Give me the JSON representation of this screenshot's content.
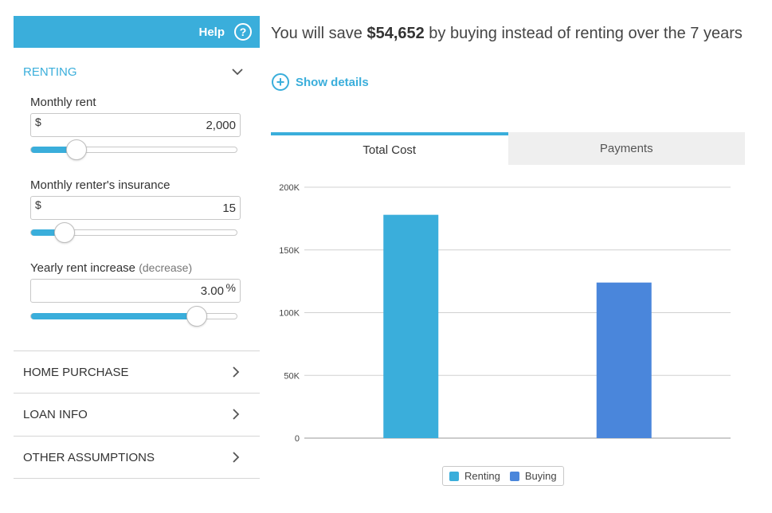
{
  "help": {
    "label": "Help",
    "icon": "question-icon",
    "icon_glyph": "?"
  },
  "renting": {
    "title": "RENTING",
    "fields": [
      {
        "label": "Monthly rent",
        "prefix": "$",
        "value": "2,000",
        "slider_fraction": 0.22
      },
      {
        "label": "Monthly renter's insurance",
        "prefix": "$",
        "value": "15",
        "slider_fraction": 0.16
      },
      {
        "label": "Yearly rent increase",
        "label_note": "(decrease)",
        "suffix": "%",
        "value": "3.00",
        "slider_fraction": 0.8
      }
    ]
  },
  "collapsed_sections": [
    "HOME PURCHASE",
    "LOAN INFO",
    "OTHER ASSUMPTIONS"
  ],
  "headline": {
    "prefix": "You will save ",
    "amount": "$54,652",
    "suffix": " by buying instead of renting over the 7 years"
  },
  "show_details": {
    "label": "Show details",
    "icon": "plus-circle-icon"
  },
  "tabs": [
    {
      "label": "Total Cost",
      "active": true
    },
    {
      "label": "Payments",
      "active": false
    }
  ],
  "colors": {
    "accent": "#3aaedb",
    "renting": "#3aaedb",
    "buying": "#4a86db"
  },
  "chart_data": {
    "type": "bar",
    "categories": [
      "Renting",
      "Buying"
    ],
    "values": [
      178000,
      124000
    ],
    "ylim": [
      0,
      200000
    ],
    "yticks": [
      0,
      50000,
      100000,
      150000,
      200000
    ],
    "ytick_labels": [
      "0",
      "50K",
      "100K",
      "150K",
      "200K"
    ],
    "legend": [
      "Renting",
      "Buying"
    ],
    "legend_position": "bottom",
    "grid": true
  }
}
